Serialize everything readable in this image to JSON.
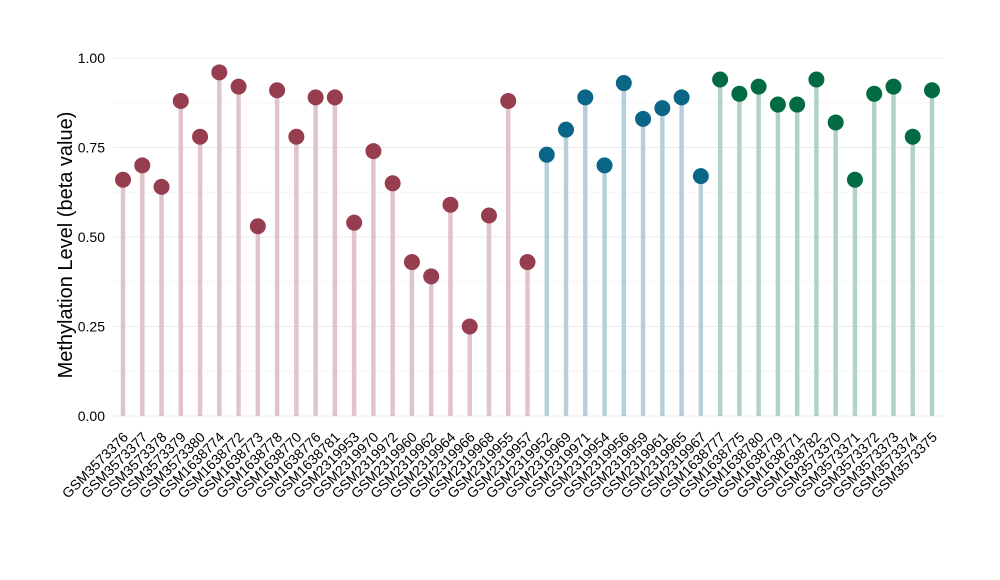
{
  "chart_data": {
    "type": "lollipop",
    "ylabel": "Methylation Level (beta value)",
    "xlabel": "",
    "ylim": [
      0,
      1
    ],
    "yticks": [
      "0.00",
      "0.25",
      "0.50",
      "0.75",
      "1.00"
    ],
    "grid": true,
    "legend": "none",
    "groups": [
      {
        "stem_color": "#dfc5cb",
        "dot_color": "#973d50"
      },
      {
        "stem_color": "#b8cfdb",
        "dot_color": "#0a6686"
      },
      {
        "stem_color": "#b3d2c6",
        "dot_color": "#036b41"
      }
    ],
    "points": [
      {
        "label": "GSM3573376",
        "value": 0.66,
        "group": 0
      },
      {
        "label": "GSM3573377",
        "value": 0.7,
        "group": 0
      },
      {
        "label": "GSM3573378",
        "value": 0.64,
        "group": 0
      },
      {
        "label": "GSM3573379",
        "value": 0.88,
        "group": 0
      },
      {
        "label": "GSM3573380",
        "value": 0.78,
        "group": 0
      },
      {
        "label": "GSM1638774",
        "value": 0.96,
        "group": 0
      },
      {
        "label": "GSM1638772",
        "value": 0.92,
        "group": 0
      },
      {
        "label": "GSM1638773",
        "value": 0.53,
        "group": 0
      },
      {
        "label": "GSM1638778",
        "value": 0.91,
        "group": 0
      },
      {
        "label": "GSM1638770",
        "value": 0.78,
        "group": 0
      },
      {
        "label": "GSM1638776",
        "value": 0.89,
        "group": 0
      },
      {
        "label": "GSM1638781",
        "value": 0.89,
        "group": 0
      },
      {
        "label": "GSM2319953",
        "value": 0.54,
        "group": 0
      },
      {
        "label": "GSM2319970",
        "value": 0.74,
        "group": 0
      },
      {
        "label": "GSM2319972",
        "value": 0.65,
        "group": 0
      },
      {
        "label": "GSM2319960",
        "value": 0.43,
        "group": 0
      },
      {
        "label": "GSM2319962",
        "value": 0.39,
        "group": 0
      },
      {
        "label": "GSM2319964",
        "value": 0.59,
        "group": 0
      },
      {
        "label": "GSM2319966",
        "value": 0.25,
        "group": 0
      },
      {
        "label": "GSM2319968",
        "value": 0.56,
        "group": 0
      },
      {
        "label": "GSM2319955",
        "value": 0.88,
        "group": 0
      },
      {
        "label": "GSM2319957",
        "value": 0.43,
        "group": 0
      },
      {
        "label": "GSM2319952",
        "value": 0.73,
        "group": 1
      },
      {
        "label": "GSM2319969",
        "value": 0.8,
        "group": 1
      },
      {
        "label": "GSM2319971",
        "value": 0.89,
        "group": 1
      },
      {
        "label": "GSM2319954",
        "value": 0.7,
        "group": 1
      },
      {
        "label": "GSM2319956",
        "value": 0.93,
        "group": 1
      },
      {
        "label": "GSM2319959",
        "value": 0.83,
        "group": 1
      },
      {
        "label": "GSM2319961",
        "value": 0.86,
        "group": 1
      },
      {
        "label": "GSM2319965",
        "value": 0.89,
        "group": 1
      },
      {
        "label": "GSM2319967",
        "value": 0.67,
        "group": 1
      },
      {
        "label": "GSM1638777",
        "value": 0.94,
        "group": 2
      },
      {
        "label": "GSM1638775",
        "value": 0.9,
        "group": 2
      },
      {
        "label": "GSM1638780",
        "value": 0.92,
        "group": 2
      },
      {
        "label": "GSM1638779",
        "value": 0.87,
        "group": 2
      },
      {
        "label": "GSM1638771",
        "value": 0.87,
        "group": 2
      },
      {
        "label": "GSM1638782",
        "value": 0.94,
        "group": 2
      },
      {
        "label": "GSM3573370",
        "value": 0.82,
        "group": 2
      },
      {
        "label": "GSM3573371",
        "value": 0.66,
        "group": 2
      },
      {
        "label": "GSM3573372",
        "value": 0.9,
        "group": 2
      },
      {
        "label": "GSM3573373",
        "value": 0.92,
        "group": 2
      },
      {
        "label": "GSM3573374",
        "value": 0.78,
        "group": 2
      },
      {
        "label": "GSM3573375",
        "value": 0.91,
        "group": 2
      }
    ]
  }
}
